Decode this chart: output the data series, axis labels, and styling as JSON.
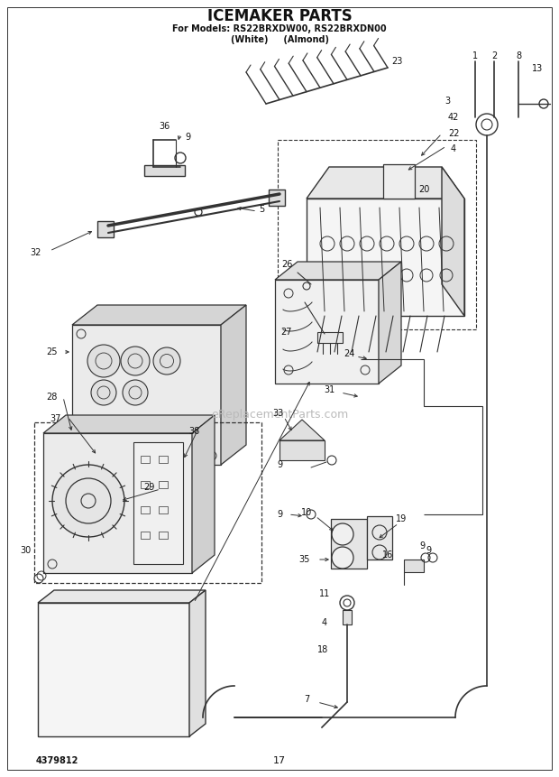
{
  "title_line1": "ICEMAKER PARTS",
  "title_line2": "For Models: RS22BRXDW00, RS22BRXDN00",
  "title_line3": "(White)     (Almond)",
  "page_number": "17",
  "part_number": "4379812",
  "watermark": "eReplacementParts.com",
  "bg_color": "#ffffff",
  "line_color": "#333333",
  "text_color": "#111111",
  "fig_width": 6.2,
  "fig_height": 8.61,
  "dpi": 100
}
